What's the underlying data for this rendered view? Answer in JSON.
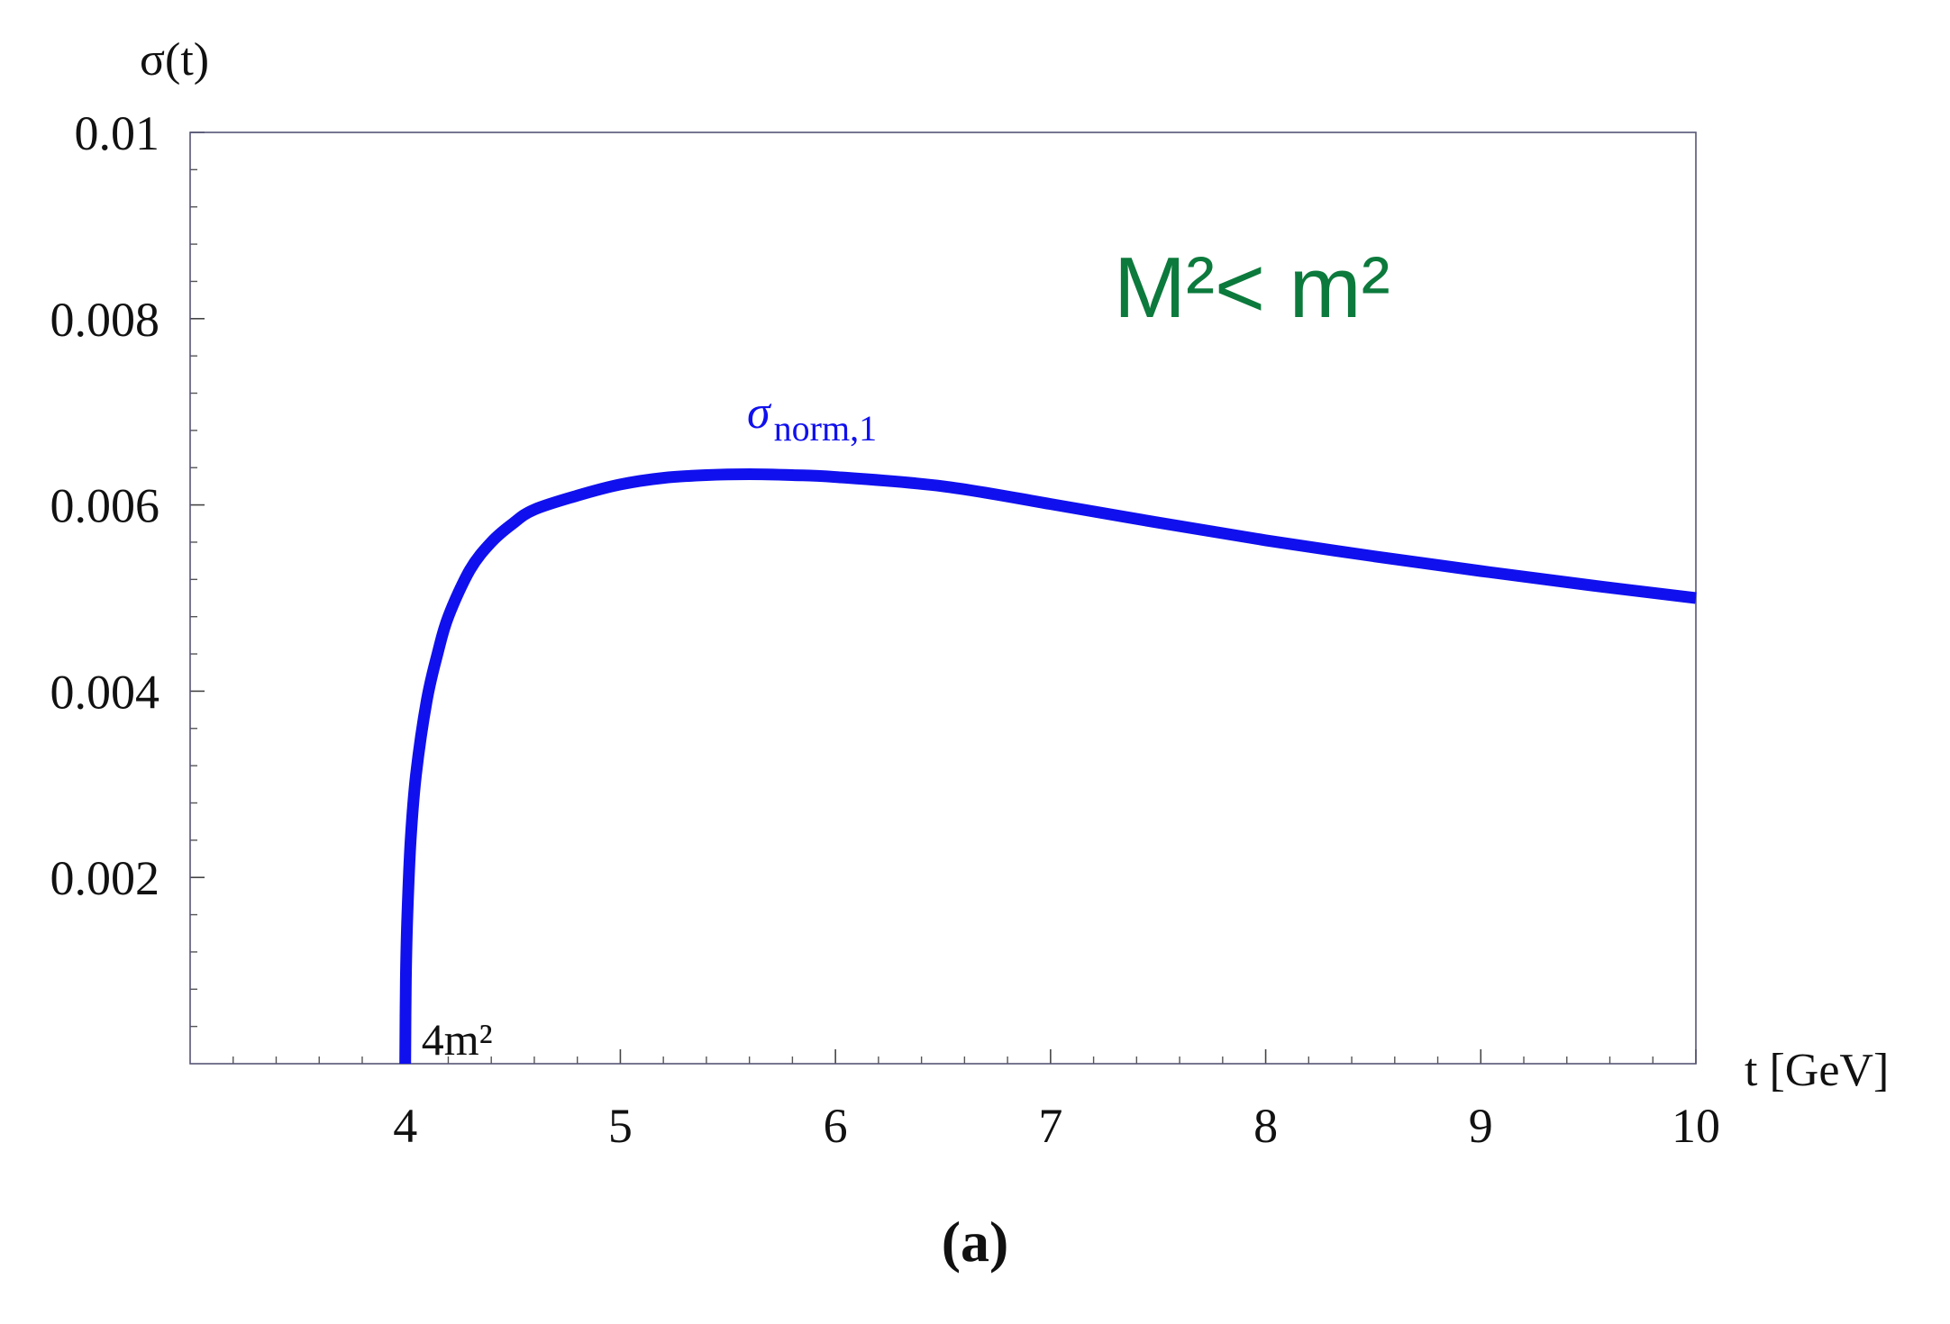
{
  "chart_data": {
    "type": "line",
    "ylabel": "σ(t)",
    "xlabel": "t [GeV]",
    "panel_label": "(a)",
    "xlim": [
      3,
      10
    ],
    "ylim": [
      0,
      0.01
    ],
    "x_ticks": [
      {
        "value": 4,
        "label": "4"
      },
      {
        "value": 5,
        "label": "5"
      },
      {
        "value": 6,
        "label": "6"
      },
      {
        "value": 7,
        "label": "7"
      },
      {
        "value": 8,
        "label": "8"
      },
      {
        "value": 9,
        "label": "9"
      },
      {
        "value": 10,
        "label": "10"
      }
    ],
    "y_ticks": [
      {
        "value": 0.002,
        "label": "0.002"
      },
      {
        "value": 0.004,
        "label": "0.004"
      },
      {
        "value": 0.006,
        "label": "0.006"
      },
      {
        "value": 0.008,
        "label": "0.008"
      },
      {
        "value": 0.01,
        "label": "0.01"
      }
    ],
    "grid": false,
    "series": [
      {
        "label_main": "σ",
        "label_sub": "norm,1",
        "color": "#1010ee",
        "x": [
          4.0,
          4.003,
          4.01,
          4.025,
          4.05,
          4.1,
          4.15,
          4.2,
          4.3,
          4.4,
          4.5,
          4.6,
          4.8,
          5.0,
          5.2,
          5.4,
          5.6,
          5.8,
          6.0,
          6.5,
          7.0,
          7.5,
          8.0,
          8.5,
          9.0,
          9.5,
          10.0
        ],
        "y": [
          0.0,
          0.0009,
          0.0016,
          0.0024,
          0.0031,
          0.0039,
          0.0044,
          0.0048,
          0.0053,
          0.0056,
          0.0058,
          0.00595,
          0.0061,
          0.00622,
          0.00629,
          0.00632,
          0.00633,
          0.00632,
          0.0063,
          0.0062,
          0.00601,
          0.00581,
          0.00562,
          0.00545,
          0.00529,
          0.00514,
          0.005
        ]
      }
    ],
    "annotations": [
      {
        "id": "threshold",
        "text": "4m²",
        "x": 4.0,
        "y": 0.0
      },
      {
        "id": "regime",
        "text": "M²< m²",
        "color": "#0c7a3c"
      }
    ]
  }
}
